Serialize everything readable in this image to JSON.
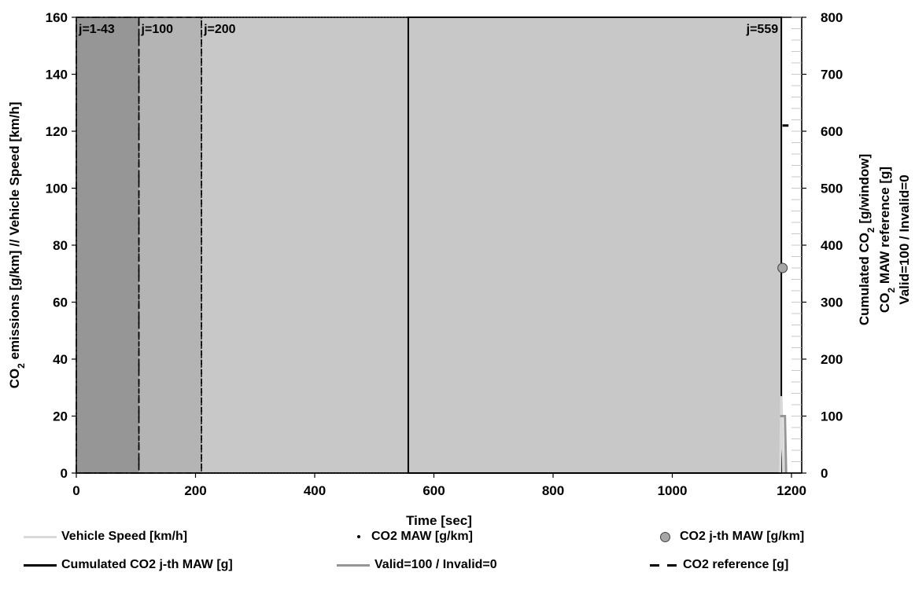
{
  "chart_data": {
    "type": "line",
    "xlabel": "Time [sec]",
    "ylabel_left": "CO2 emissions [g/km] // Vehicle Speed [km/h]",
    "ylabel_right": [
      "Cumulated CO2 [g/window]",
      "CO2 MAW reference [g]",
      "Valid=100 / Invalid=0"
    ],
    "xlim": [
      0,
      1200
    ],
    "ylim_left": [
      0,
      160
    ],
    "ylim_right": [
      0,
      800
    ],
    "x_ticks": [
      "0",
      "200",
      "400",
      "600",
      "800",
      "1000",
      "1200"
    ],
    "y_left_ticks": [
      "0",
      "20",
      "40",
      "60",
      "80",
      "100",
      "120",
      "140",
      "160"
    ],
    "y_right_ticks": [
      "0",
      "100",
      "200",
      "300",
      "400",
      "500",
      "600",
      "700",
      "800"
    ],
    "windows": [
      {
        "label": "j=1-43",
        "x_start": 0,
        "x_end": 105,
        "fill": "#969696",
        "border": "dashdot"
      },
      {
        "label": "j=100",
        "x_start": 105,
        "x_end": 210,
        "fill": "#b4b4b4",
        "border": "dashed"
      },
      {
        "label": "j=200",
        "x_start": 210,
        "x_end": 557,
        "fill": "#c8c8c8",
        "border": "dotted"
      },
      {
        "label": "j=559",
        "x_start": 557,
        "x_end": 1183,
        "fill": "#c8c8c8",
        "border": "solid"
      }
    ],
    "series": [
      {
        "name": "Vehicle Speed [km/h]",
        "axis": "left",
        "color": "#d9d9d9",
        "x": [
          1181,
          1183,
          1185,
          1187
        ],
        "y": [
          0,
          27,
          12,
          0
        ]
      },
      {
        "name": "CO2 MAW [g/km]",
        "axis": "left",
        "color": "#000000",
        "x": [],
        "y": []
      },
      {
        "name": "CO2 j-th MAW [g/km]",
        "axis": "left",
        "color": "#a6a6a6",
        "x": [
          1185
        ],
        "y": [
          72
        ]
      },
      {
        "name": "Cumulated CO2 j-th MAW [g]",
        "axis": "right",
        "color": "#000000",
        "x": [],
        "y": []
      },
      {
        "name": "Valid=100 / Invalid=0",
        "axis": "right",
        "color": "#969696",
        "x": [
          1181,
          1189,
          1191
        ],
        "y": [
          100,
          100,
          0
        ]
      },
      {
        "name": "CO2 reference [g]",
        "axis": "right",
        "color": "#000000",
        "x": [
          1185,
          1195
        ],
        "y": [
          610,
          610
        ]
      }
    ],
    "grid": false,
    "legend_position": "bottom"
  }
}
